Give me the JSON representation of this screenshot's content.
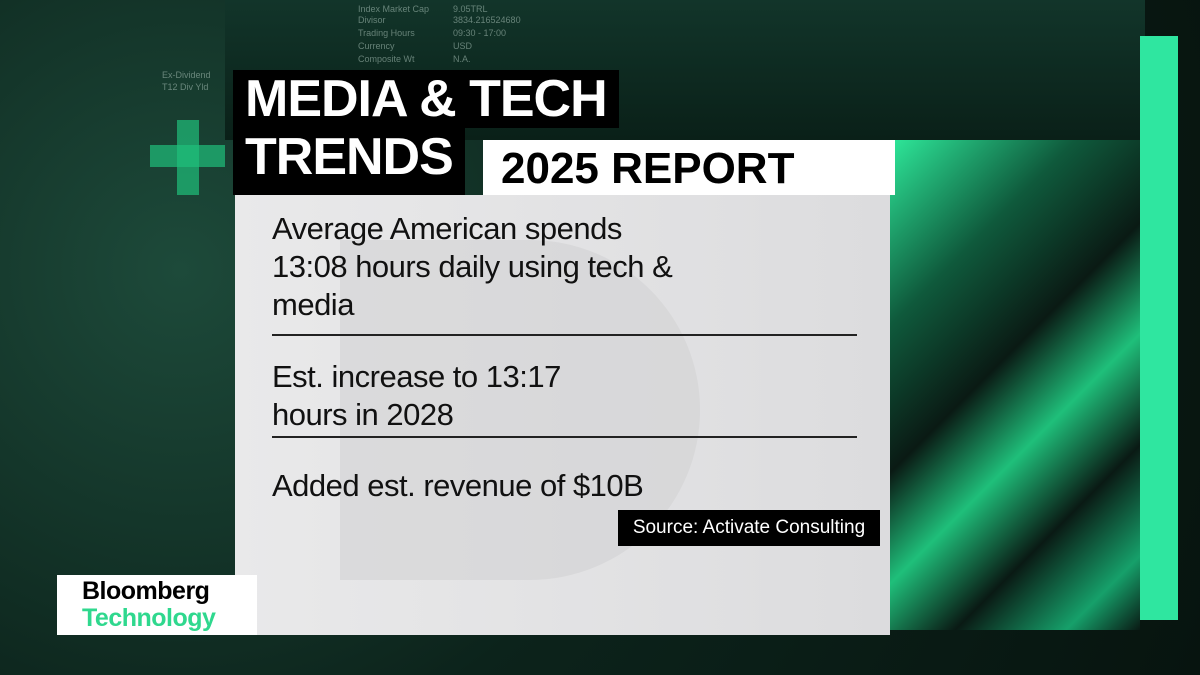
{
  "background_ticker": [
    "Index Market Cap",
    "9.05TRL",
    "Divisor",
    "3834.216524680",
    "Trading Hours",
    "09:30 - 17:00",
    "Currency",
    "USD",
    "Composite Wt",
    "N.A.",
    "Ex-Dividend",
    "T12 Div Yld"
  ],
  "header": {
    "title_lines": [
      "MEDIA & TECH",
      "TRENDS"
    ],
    "report": "2025 REPORT"
  },
  "items": [
    "Average American spends 13:08 hours daily using tech & media",
    "Est. increase to 13:17 hours in 2028",
    "Added est. revenue of $10B"
  ],
  "source": "Source: Activate Consulting",
  "logo": {
    "brand": "Bloomberg",
    "section": "Technology"
  }
}
